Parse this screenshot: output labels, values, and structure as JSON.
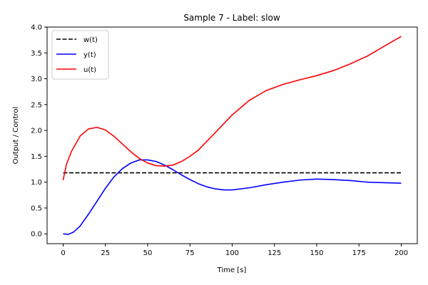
{
  "chart_data": {
    "type": "line",
    "title": "Sample 7 - Label: slow",
    "xlabel": "Time [s]",
    "ylabel": "Output / Control",
    "xlim": [
      -9.5,
      209.5
    ],
    "ylim": [
      -0.19,
      4.0
    ],
    "xticks": [
      0,
      25,
      50,
      75,
      100,
      125,
      150,
      175,
      200
    ],
    "xtick_labels": [
      "0",
      "25",
      "50",
      "75",
      "100",
      "125",
      "150",
      "175",
      "200"
    ],
    "yticks": [
      0.0,
      0.5,
      1.0,
      1.5,
      2.0,
      2.5,
      3.0,
      3.5,
      4.0
    ],
    "ytick_labels": [
      "0.0",
      "0.5",
      "1.0",
      "1.5",
      "2.0",
      "2.5",
      "3.0",
      "3.5",
      "4.0"
    ],
    "grid": false,
    "legend_position": "top-left",
    "series": [
      {
        "name": "w(t)",
        "color": "#000000",
        "style": "dashed",
        "x": [
          0,
          200
        ],
        "y": [
          1.18,
          1.18
        ]
      },
      {
        "name": "y(t)",
        "color": "#0000ff",
        "style": "solid",
        "x": [
          0,
          3,
          6,
          10,
          15,
          20,
          25,
          30,
          35,
          40,
          45,
          50,
          55,
          60,
          65,
          70,
          75,
          80,
          85,
          90,
          95,
          100,
          110,
          120,
          130,
          140,
          150,
          160,
          170,
          180,
          190,
          200
        ],
        "y": [
          0.0,
          -0.01,
          0.03,
          0.15,
          0.38,
          0.63,
          0.88,
          1.1,
          1.26,
          1.37,
          1.43,
          1.43,
          1.4,
          1.33,
          1.24,
          1.14,
          1.05,
          0.97,
          0.91,
          0.87,
          0.85,
          0.85,
          0.89,
          0.95,
          1.0,
          1.04,
          1.06,
          1.05,
          1.03,
          1.0,
          0.99,
          0.98
        ]
      },
      {
        "name": "u(t)",
        "color": "#ff0000",
        "style": "solid",
        "x": [
          0,
          2,
          5,
          10,
          15,
          20,
          25,
          30,
          35,
          40,
          45,
          50,
          55,
          60,
          65,
          70,
          75,
          80,
          90,
          100,
          110,
          120,
          130,
          140,
          150,
          160,
          170,
          180,
          190,
          200
        ],
        "y": [
          1.04,
          1.35,
          1.6,
          1.89,
          2.03,
          2.06,
          2.01,
          1.89,
          1.74,
          1.59,
          1.46,
          1.37,
          1.32,
          1.31,
          1.33,
          1.4,
          1.5,
          1.62,
          1.96,
          2.3,
          2.58,
          2.77,
          2.89,
          2.98,
          3.06,
          3.16,
          3.29,
          3.44,
          3.63,
          3.82
        ]
      }
    ]
  }
}
